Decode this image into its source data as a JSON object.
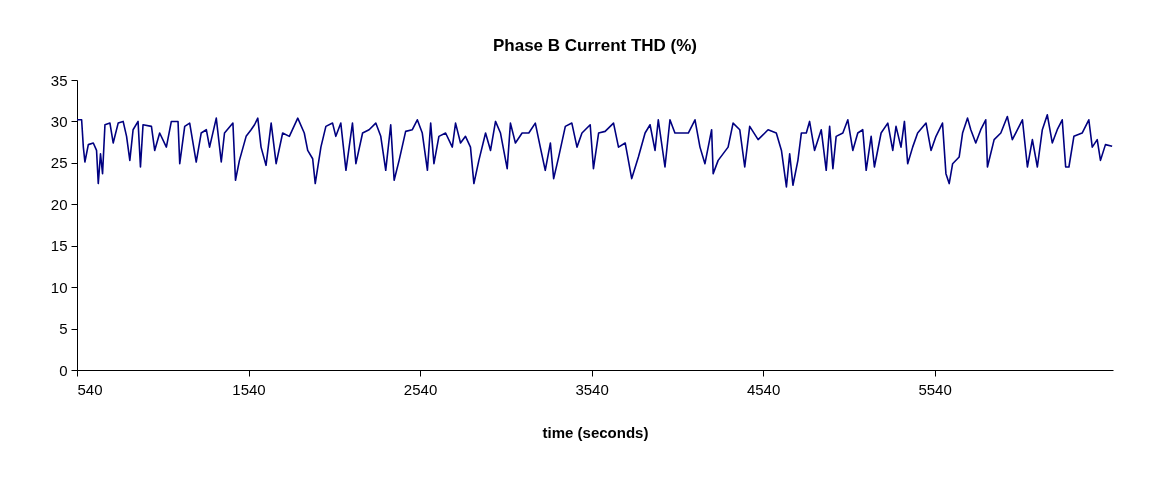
{
  "chart_data": {
    "type": "line",
    "title": "Phase B Current THD (%)",
    "xlabel": "time (seconds)",
    "xlim": [
      540,
      6580
    ],
    "xticks": [
      540,
      1540,
      2540,
      3540,
      4540,
      5540
    ],
    "ylim": [
      0,
      35
    ],
    "yticks": [
      0,
      5,
      10,
      15,
      20,
      25,
      30,
      35
    ],
    "grid": false,
    "legend": false,
    "marker": "none",
    "line_style": "solid",
    "x": [
      540,
      567,
      577,
      586,
      606,
      635,
      654,
      664,
      677,
      689,
      703,
      732,
      751,
      780,
      809,
      829,
      848,
      867,
      896,
      910,
      925,
      974,
      993,
      1022,
      1061,
      1090,
      1129,
      1139,
      1168,
      1197,
      1235,
      1264,
      1294,
      1313,
      1352,
      1381,
      1400,
      1449,
      1464,
      1487,
      1526,
      1555,
      1575,
      1594,
      1613,
      1642,
      1672,
      1701,
      1739,
      1778,
      1827,
      1865,
      1885,
      1914,
      1929,
      1962,
      1991,
      2030,
      2049,
      2078,
      2108,
      2146,
      2166,
      2205,
      2243,
      2282,
      2311,
      2340,
      2369,
      2389,
      2418,
      2456,
      2495,
      2524,
      2553,
      2583,
      2602,
      2621,
      2650,
      2689,
      2728,
      2747,
      2776,
      2805,
      2834,
      2854,
      2883,
      2922,
      2951,
      2980,
      3009,
      3048,
      3067,
      3096,
      3135,
      3174,
      3212,
      3241,
      3270,
      3300,
      3319,
      3348,
      3387,
      3425,
      3455,
      3484,
      3532,
      3551,
      3581,
      3619,
      3668,
      3697,
      3736,
      3774,
      3813,
      3852,
      3881,
      3910,
      3929,
      3968,
      3997,
      4026,
      4065,
      4104,
      4143,
      4172,
      4201,
      4240,
      4249,
      4278,
      4336,
      4365,
      4404,
      4433,
      4462,
      4511,
      4569,
      4617,
      4647,
      4676,
      4695,
      4714,
      4743,
      4763,
      4792,
      4811,
      4840,
      4879,
      4908,
      4928,
      4947,
      4966,
      5005,
      5034,
      5063,
      5092,
      5121,
      5141,
      5170,
      5189,
      5228,
      5267,
      5296,
      5315,
      5344,
      5364,
      5383,
      5412,
      5441,
      5490,
      5519,
      5548,
      5586,
      5606,
      5625,
      5645,
      5683,
      5703,
      5732,
      5751,
      5780,
      5809,
      5838,
      5848,
      5887,
      5926,
      5964,
      5993,
      6023,
      6052,
      6081,
      6110,
      6139,
      6168,
      6197,
      6226,
      6255,
      6284,
      6304,
      6323,
      6352,
      6400,
      6439,
      6459,
      6488,
      6507,
      6536,
      6575
    ],
    "series": [
      {
        "color": "#000080",
        "values": [
          30.2,
          30.2,
          26.9,
          25.1,
          27.2,
          27.4,
          26.5,
          22.5,
          26.1,
          23.7,
          29.6,
          29.8,
          27.4,
          29.8,
          30.0,
          28.2,
          25.3,
          29.0,
          30.0,
          24.5,
          29.6,
          29.4,
          26.5,
          28.6,
          26.9,
          30.0,
          30.0,
          24.9,
          29.4,
          29.8,
          25.1,
          28.6,
          29.0,
          26.9,
          30.4,
          25.1,
          28.6,
          29.8,
          22.9,
          25.3,
          28.2,
          29.0,
          29.6,
          30.4,
          26.9,
          24.7,
          29.8,
          24.9,
          28.6,
          28.2,
          30.4,
          28.6,
          26.5,
          25.5,
          22.5,
          26.9,
          29.4,
          29.8,
          28.2,
          29.8,
          24.1,
          29.8,
          24.9,
          28.6,
          29.0,
          29.8,
          28.2,
          24.1,
          29.6,
          22.9,
          25.3,
          28.8,
          29.0,
          30.2,
          28.6,
          24.1,
          29.8,
          24.9,
          28.2,
          28.6,
          26.9,
          29.8,
          27.4,
          28.2,
          26.9,
          22.5,
          25.3,
          28.6,
          26.5,
          30.0,
          28.6,
          24.3,
          29.8,
          27.4,
          28.6,
          28.6,
          29.8,
          26.9,
          24.1,
          27.4,
          23.1,
          25.7,
          29.4,
          29.8,
          26.9,
          28.6,
          29.6,
          24.3,
          28.6,
          28.8,
          29.8,
          26.9,
          27.4,
          23.1,
          25.7,
          28.6,
          29.6,
          26.5,
          30.2,
          24.5,
          30.2,
          28.6,
          28.6,
          28.6,
          30.2,
          26.9,
          24.9,
          29.0,
          23.7,
          25.3,
          26.9,
          29.8,
          29.0,
          24.5,
          29.4,
          27.8,
          29.0,
          28.6,
          26.5,
          22.1,
          26.1,
          22.3,
          25.3,
          28.6,
          28.6,
          30.0,
          26.5,
          29.0,
          24.1,
          29.4,
          24.3,
          28.2,
          28.6,
          30.2,
          26.5,
          28.6,
          29.0,
          24.1,
          28.2,
          24.5,
          28.6,
          29.8,
          26.5,
          29.4,
          26.9,
          30.0,
          24.9,
          26.9,
          28.6,
          29.8,
          26.5,
          28.2,
          29.8,
          23.7,
          22.5,
          24.9,
          25.7,
          28.6,
          30.4,
          29.0,
          27.4,
          29.0,
          30.2,
          24.5,
          27.8,
          28.6,
          30.6,
          27.8,
          29.0,
          30.2,
          24.5,
          27.8,
          24.5,
          29.0,
          30.8,
          27.4,
          29.0,
          30.2,
          24.5,
          24.5,
          28.2,
          28.6,
          30.2,
          26.9,
          27.8,
          25.3,
          27.2,
          27.0
        ]
      }
    ]
  }
}
